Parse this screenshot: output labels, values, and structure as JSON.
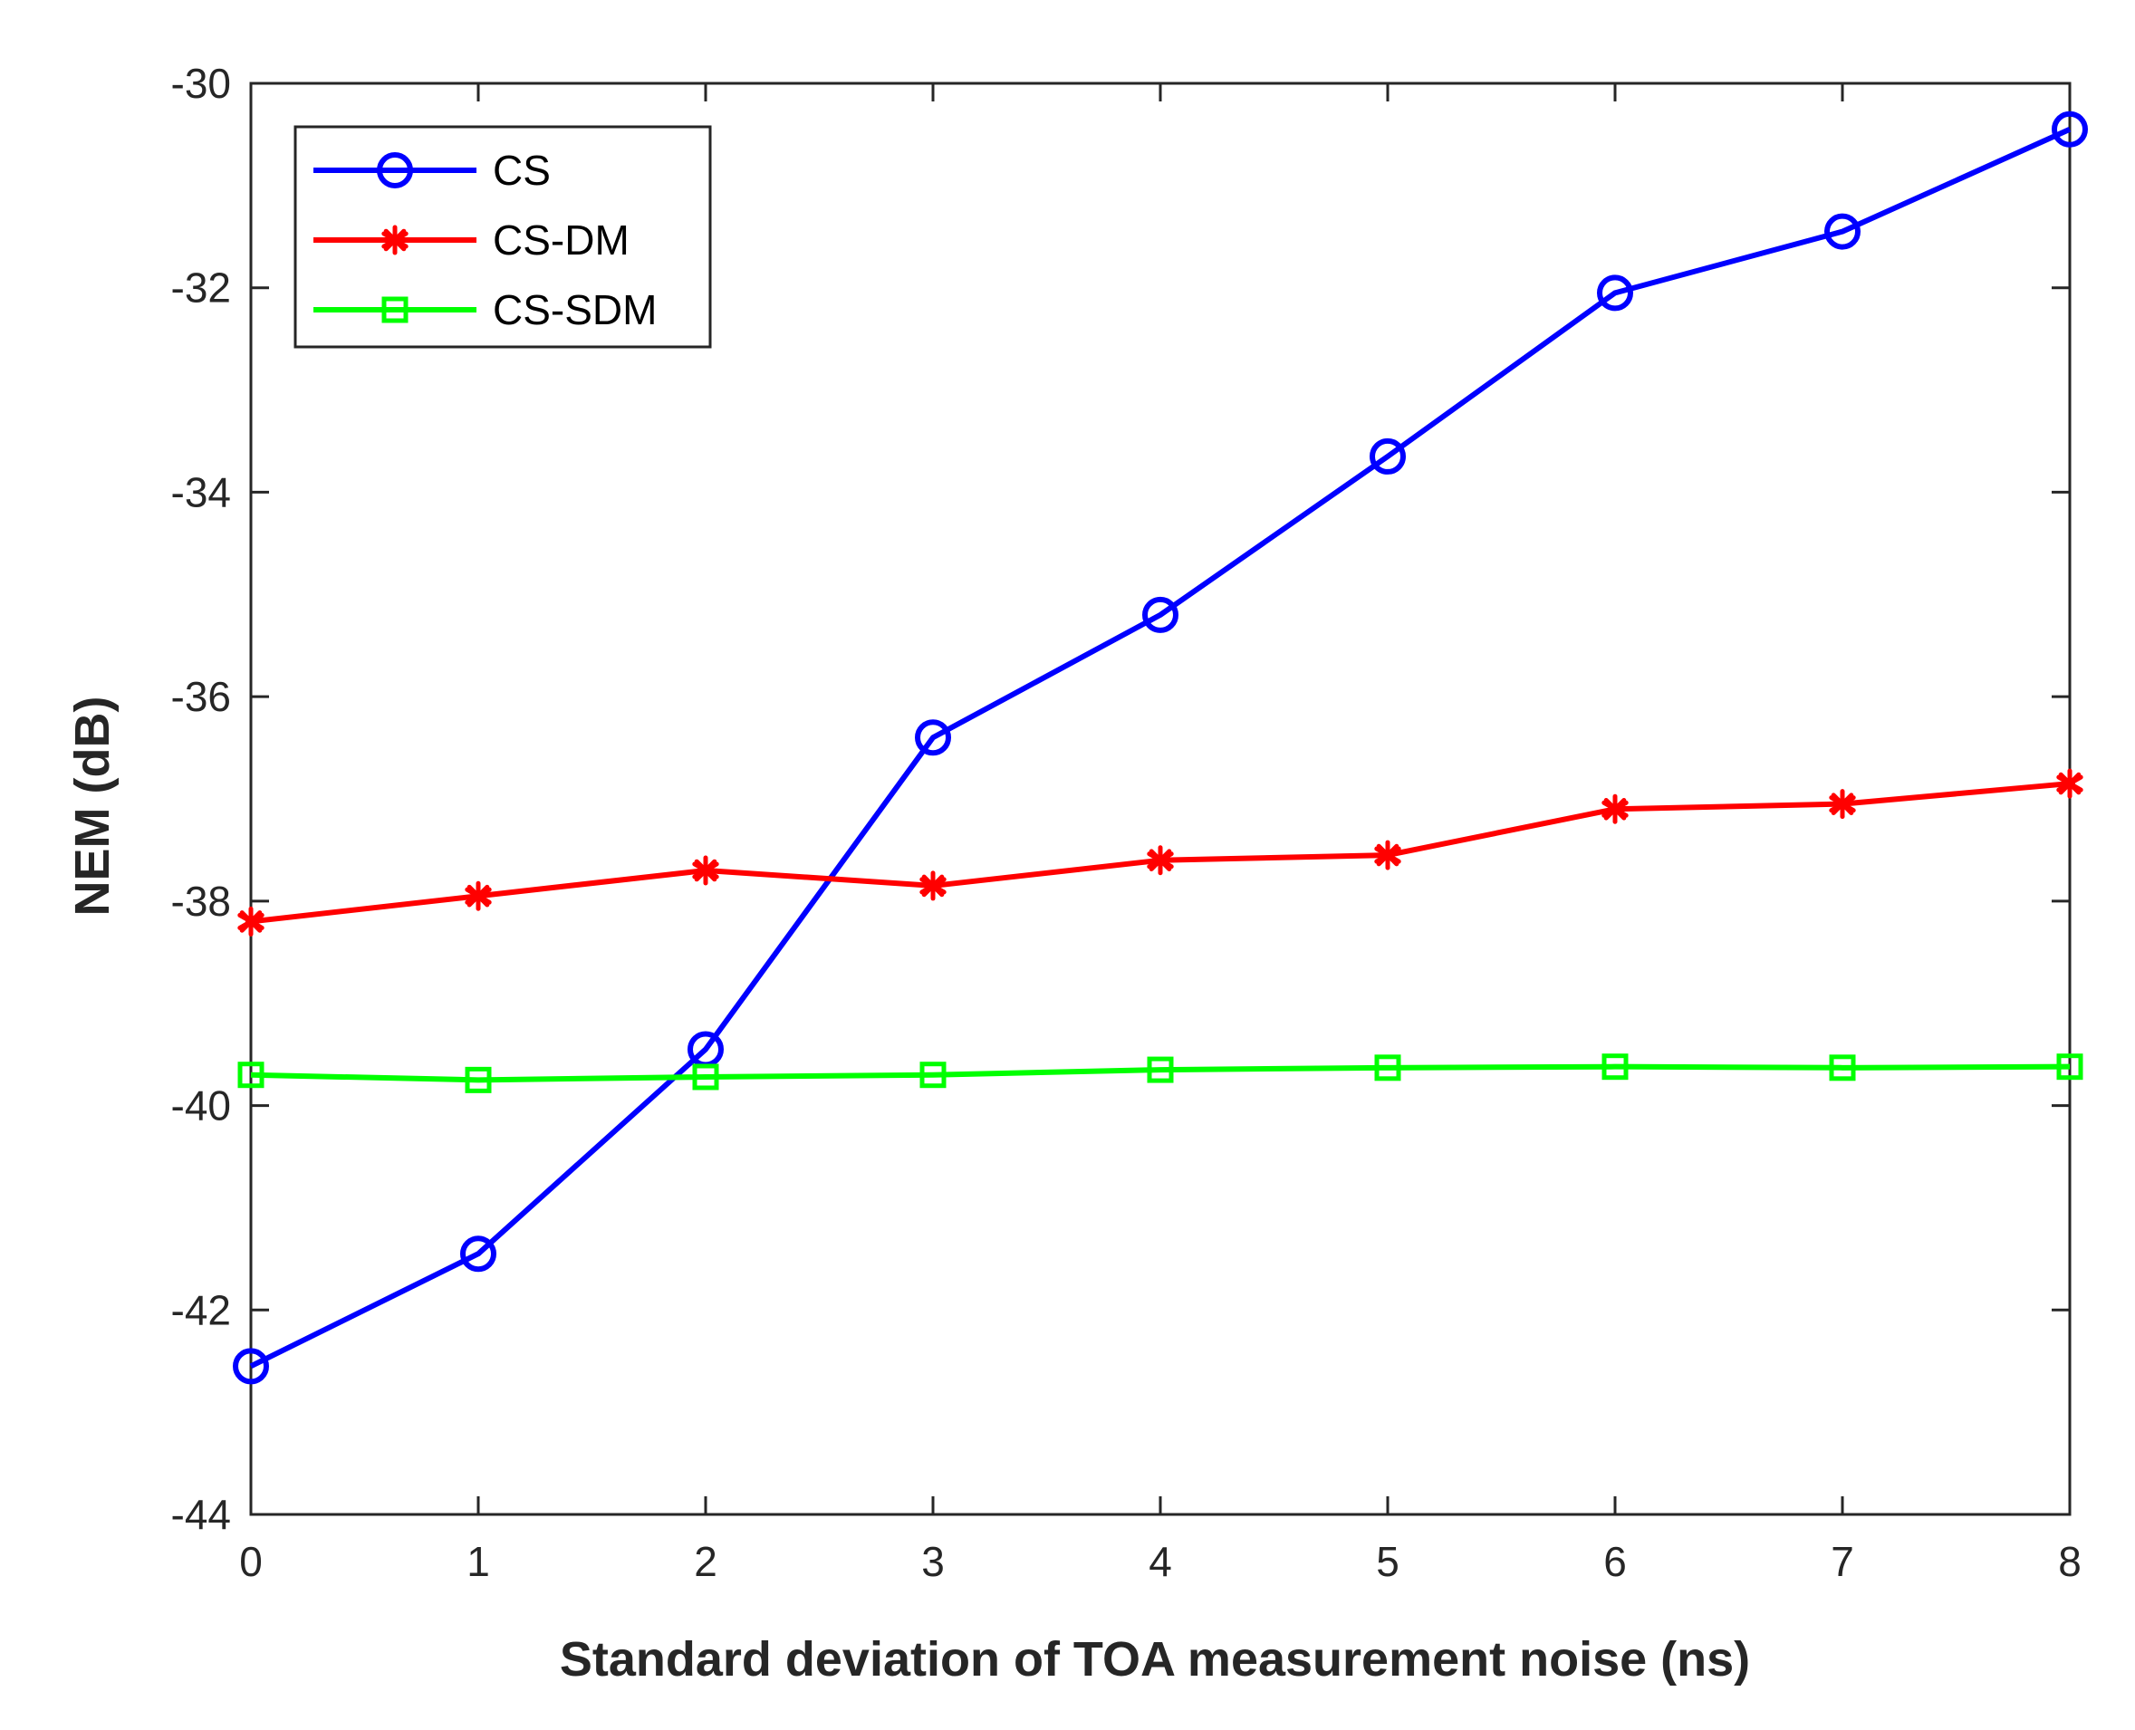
{
  "chart_data": {
    "type": "line",
    "title": "",
    "xlabel": "Standard deviation of TOA measurement noise (ns)",
    "ylabel": "NEM (dB)",
    "x": [
      0,
      1,
      2,
      3,
      4,
      5,
      6,
      7,
      8
    ],
    "xlim": [
      0,
      8
    ],
    "ylim": [
      -44,
      -30
    ],
    "xticks": [
      0,
      1,
      2,
      3,
      4,
      5,
      6,
      7,
      8
    ],
    "yticks": [
      -44,
      -42,
      -40,
      -38,
      -36,
      -34,
      -32,
      -30
    ],
    "grid": false,
    "legend_position": "top-left",
    "series": [
      {
        "name": "CS",
        "color": "#0000ff",
        "marker": "circle",
        "values": [
          -42.55,
          -41.45,
          -39.45,
          -36.4,
          -35.2,
          -33.65,
          -32.05,
          -31.45,
          -30.45
        ]
      },
      {
        "name": "CS-DM",
        "color": "#ff0000",
        "marker": "asterisk",
        "values": [
          -38.2,
          -37.95,
          -37.7,
          -37.85,
          -37.6,
          -37.55,
          -37.1,
          -37.05,
          -36.85
        ]
      },
      {
        "name": "CS-SDM",
        "color": "#00ff00",
        "marker": "square",
        "values": [
          -39.7,
          -39.75,
          -39.72,
          -39.7,
          -39.65,
          -39.63,
          -39.62,
          -39.63,
          -39.62
        ]
      }
    ]
  }
}
